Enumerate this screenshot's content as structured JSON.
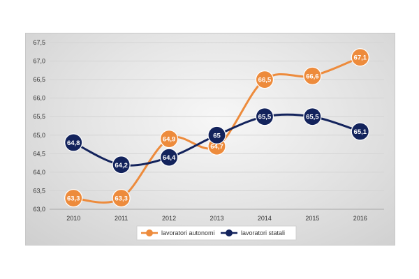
{
  "chart_data": {
    "type": "line",
    "categories": [
      "2010",
      "2011",
      "2012",
      "2013",
      "2014",
      "2015",
      "2016"
    ],
    "series": [
      {
        "name": "lavoratori autonomi",
        "color": "#ed8b3c",
        "values": [
          63.3,
          63.3,
          64.9,
          64.7,
          66.5,
          66.6,
          67.1
        ],
        "labels": [
          "63,3",
          "63,3",
          "64,9",
          "64,7",
          "66,5",
          "66,6",
          "67,1"
        ]
      },
      {
        "name": "lavoratori statali",
        "color": "#13235c",
        "values": [
          64.8,
          64.2,
          64.4,
          65.0,
          65.5,
          65.5,
          65.1
        ],
        "labels": [
          "64,8",
          "64,2",
          "64,4",
          "65",
          "65,5",
          "65,5",
          "65,1"
        ]
      }
    ],
    "ylim": [
      63.0,
      67.5
    ],
    "yticks": [
      "63,0",
      "63,5",
      "64,0",
      "64,5",
      "65,0",
      "65,5",
      "66,0",
      "66,5",
      "67,0",
      "67,5"
    ],
    "grid": true,
    "legend_position": "bottom"
  }
}
